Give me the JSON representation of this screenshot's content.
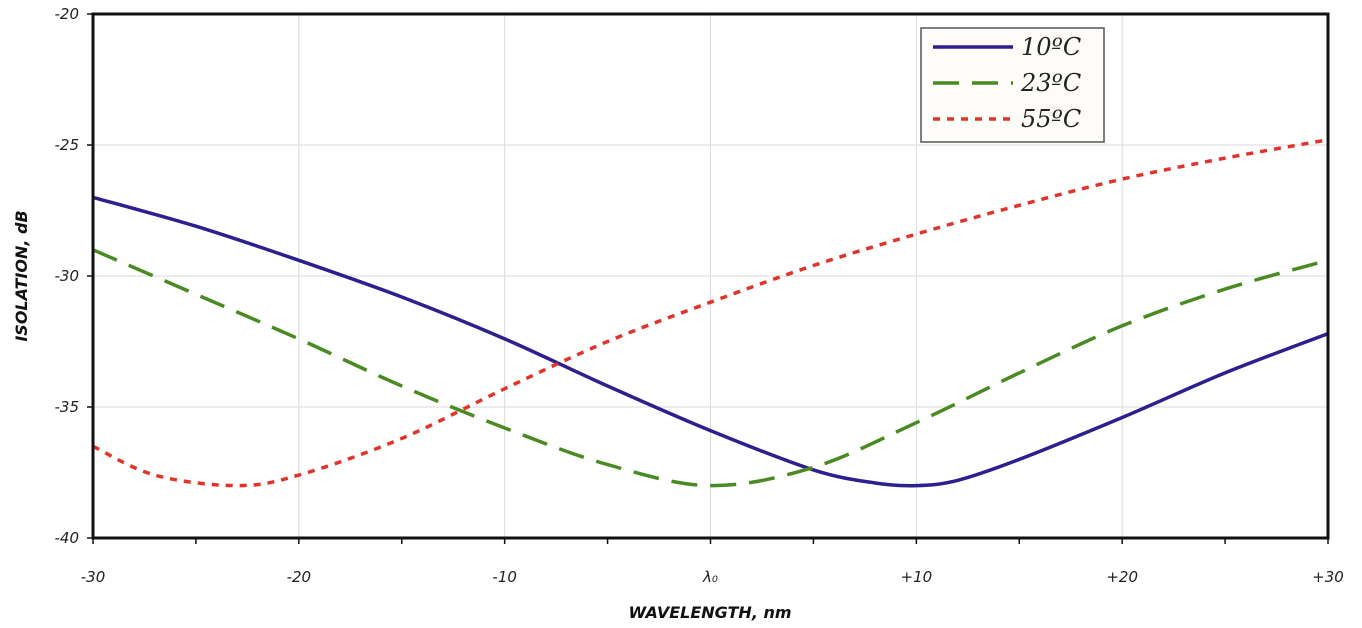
{
  "chart_data": {
    "type": "line",
    "title": "",
    "xlabel": "WAVELENGTH, nm",
    "ylabel": "ISOLATION, dB",
    "xlim": [
      -30,
      30
    ],
    "ylim": [
      -40,
      -20
    ],
    "x_ticks": [
      {
        "value": -30,
        "label": "-30"
      },
      {
        "value": -20,
        "label": "-20"
      },
      {
        "value": -10,
        "label": "-10"
      },
      {
        "value": 0,
        "label": "λ₀"
      },
      {
        "value": 10,
        "label": "+10"
      },
      {
        "value": 20,
        "label": "+20"
      },
      {
        "value": 30,
        "label": "+30"
      }
    ],
    "y_ticks": [
      {
        "value": -20,
        "label": "-20"
      },
      {
        "value": -25,
        "label": "-25"
      },
      {
        "value": -30,
        "label": "-30"
      },
      {
        "value": -35,
        "label": "-35"
      },
      {
        "value": -40,
        "label": "-40"
      }
    ],
    "grid": true,
    "legend_position": "top-right",
    "series": [
      {
        "name": "10ºC",
        "color": "#2e1f8f",
        "style": "solid",
        "x": [
          -30,
          -25,
          -20,
          -15,
          -10,
          -5,
          0,
          5,
          8,
          10,
          12,
          15,
          20,
          25,
          30
        ],
        "y": [
          -27.0,
          -28.1,
          -29.4,
          -30.8,
          -32.4,
          -34.2,
          -35.9,
          -37.4,
          -37.9,
          -38.0,
          -37.8,
          -37.0,
          -35.4,
          -33.7,
          -32.2
        ]
      },
      {
        "name": "23ºC",
        "color": "#4a8a22",
        "style": "dashed",
        "x": [
          -30,
          -25,
          -20,
          -15,
          -10,
          -5,
          0,
          5,
          10,
          15,
          20,
          25,
          30
        ],
        "y": [
          -29.0,
          -30.7,
          -32.4,
          -34.2,
          -35.8,
          -37.2,
          -38.0,
          -37.3,
          -35.6,
          -33.7,
          -31.9,
          -30.5,
          -29.4
        ]
      },
      {
        "name": "55ºC",
        "color": "#e0342a",
        "style": "dotted",
        "x": [
          -30,
          -27,
          -23,
          -20,
          -15,
          -10,
          -5,
          0,
          5,
          10,
          15,
          20,
          25,
          30
        ],
        "y": [
          -36.5,
          -37.6,
          -38.0,
          -37.6,
          -36.2,
          -34.3,
          -32.5,
          -31.0,
          -29.6,
          -28.4,
          -27.3,
          -26.3,
          -25.5,
          -24.8
        ]
      }
    ]
  }
}
